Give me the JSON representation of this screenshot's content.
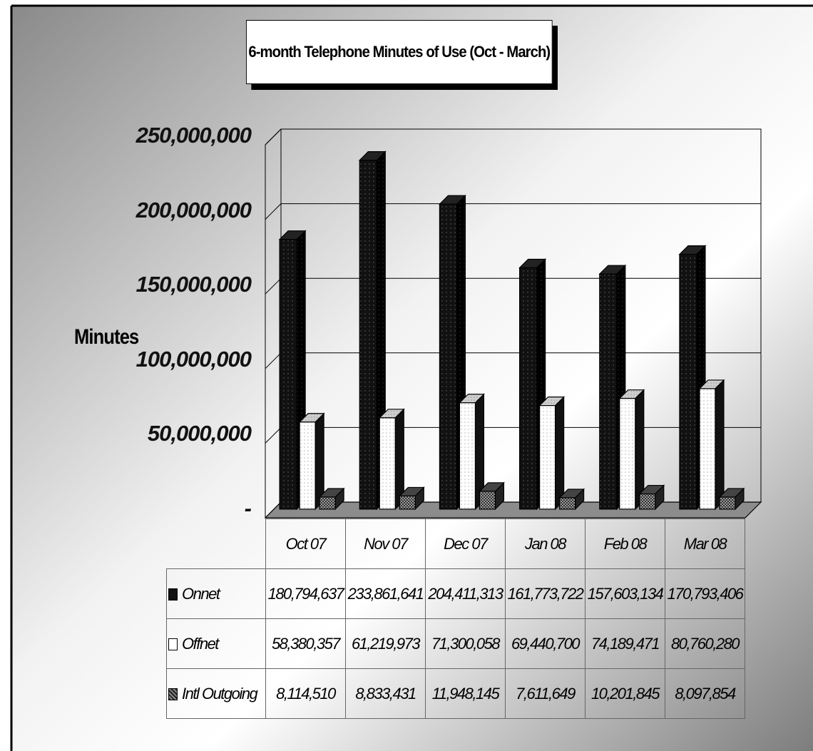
{
  "chart_data": {
    "type": "bar",
    "title": "6-month Telephone Minutes of Use (Oct - March)",
    "ylabel": "Minutes",
    "ylim": [
      0,
      250000000
    ],
    "yticks": [
      "-",
      "50,000,000",
      "100,000,000",
      "150,000,000",
      "200,000,000",
      "250,000,000"
    ],
    "ytick_values": [
      0,
      50000000,
      100000000,
      150000000,
      200000000,
      250000000
    ],
    "categories": [
      "Oct 07",
      "Nov 07",
      "Dec 07",
      "Jan 08",
      "Feb 08",
      "Mar 08"
    ],
    "series": [
      {
        "name": "Onnet",
        "values": [
          180794637,
          233861641,
          204411313,
          161773722,
          157603134,
          170793406
        ],
        "labels": [
          "180,794,637",
          "233,861,641",
          "204,411,313",
          "161,773,722",
          "157,603,134",
          "170,793,406"
        ],
        "color": "#111111"
      },
      {
        "name": "Offnet",
        "values": [
          58380357,
          61219973,
          71300058,
          69440700,
          74189471,
          80760280
        ],
        "labels": [
          "58,380,357",
          "61,219,973",
          "71,300,058",
          "69,440,700",
          "74,189,471",
          "80,760,280"
        ],
        "color": "#ffffff"
      },
      {
        "name": "Intl Outgoing",
        "values": [
          8114510,
          8833431,
          11948145,
          7611649,
          10201845,
          8097854
        ],
        "labels": [
          "8,114,510",
          "8,833,431",
          "11,948,145",
          "7,611,649",
          "10,201,845",
          "8,097,854"
        ],
        "color": "#555555"
      }
    ],
    "grid": true,
    "legend": "data-table"
  }
}
